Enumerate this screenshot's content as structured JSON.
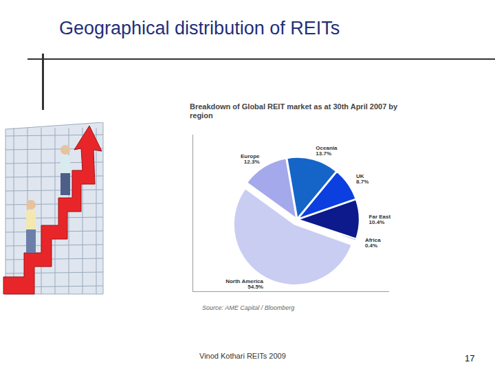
{
  "title": "Geographical distribution of REITs",
  "chart_data": {
    "type": "pie",
    "title": "Breakdown of Global REIT market as at 30th April 2007  by region",
    "categories": [
      "Oceania",
      "UK",
      "Far East",
      "Africa",
      "North America",
      "Europe"
    ],
    "values": [
      13.7,
      8.7,
      10.4,
      0.4,
      54.5,
      12.3
    ],
    "value_labels": [
      "13.7%",
      "8.7%",
      "10.4%",
      "0.4%",
      "54.5%",
      "12.3%"
    ],
    "colors": [
      "#1565c8",
      "#0b3fe0",
      "#0c1a8c",
      "#5b86d8",
      "#c9cdf2",
      "#a3a9ea"
    ],
    "data_labels": true,
    "source": "Source: AME Capital / Bloomberg"
  },
  "footer": "Vinod Kothari REITs 2009",
  "page": 17
}
